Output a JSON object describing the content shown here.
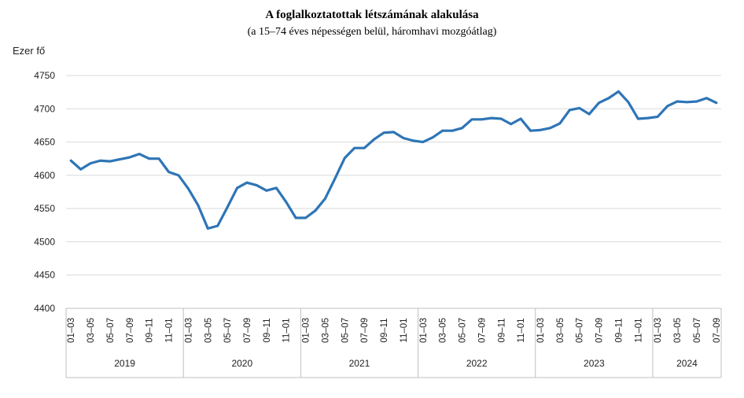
{
  "chart_data": {
    "type": "line",
    "title": "A foglalkoztatottak létszámának alakulása",
    "subtitle": "(a 15–74 éves népességen belül, háromhavi mozgóátlag)",
    "ylabel": "Ezer fő",
    "ylim": [
      4400,
      4750
    ],
    "yticks": [
      4400,
      4450,
      4500,
      4550,
      4600,
      4650,
      4700,
      4750
    ],
    "grid": true,
    "legend": "none",
    "color": "#2e75b6",
    "x_tick_labels": [
      "01–03",
      "03–05",
      "05–07",
      "07–09",
      "09–11",
      "11–01"
    ],
    "years": [
      {
        "label": "2019",
        "tick_count": 6
      },
      {
        "label": "2020",
        "tick_count": 6
      },
      {
        "label": "2021",
        "tick_count": 6
      },
      {
        "label": "2022",
        "tick_count": 6
      },
      {
        "label": "2023",
        "tick_count": 6
      },
      {
        "label": "2024",
        "tick_count": 4
      }
    ],
    "x": [
      "2019 01–03",
      "2019 02–04",
      "2019 03–05",
      "2019 04–06",
      "2019 05–07",
      "2019 06–08",
      "2019 07–09",
      "2019 08–10",
      "2019 09–11",
      "2019 10–12",
      "2019 11–01",
      "2019 12–02",
      "2020 01–03",
      "2020 02–04",
      "2020 03–05",
      "2020 04–06",
      "2020 05–07",
      "2020 06–08",
      "2020 07–09",
      "2020 08–10",
      "2020 09–11",
      "2020 10–12",
      "2020 11–01",
      "2020 12–02",
      "2021 01–03",
      "2021 02–04",
      "2021 03–05",
      "2021 04–06",
      "2021 05–07",
      "2021 06–08",
      "2021 07–09",
      "2021 08–10",
      "2021 09–11",
      "2021 10–12",
      "2021 11–01",
      "2021 12–02",
      "2022 01–03",
      "2022 02–04",
      "2022 03–05",
      "2022 04–06",
      "2022 05–07",
      "2022 06–08",
      "2022 07–09",
      "2022 08–10",
      "2022 09–11",
      "2022 10–12",
      "2022 11–01",
      "2022 12–02",
      "2023 01–03",
      "2023 02–04",
      "2023 03–05",
      "2023 04–06",
      "2023 05–07",
      "2023 06–08",
      "2023 07–09",
      "2023 08–10",
      "2023 09–11",
      "2023 10–12",
      "2023 11–01",
      "2023 12–02",
      "2024 01–03",
      "2024 02–04",
      "2024 03–05",
      "2024 04–06",
      "2024 05–07",
      "2024 06–08",
      "2024 07–09"
    ],
    "values": [
      4622,
      4609,
      4618,
      4622,
      4621,
      4624,
      4627,
      4632,
      4625,
      4625,
      4605,
      4600,
      4580,
      4555,
      4520,
      4524,
      4552,
      4581,
      4589,
      4585,
      4577,
      4581,
      4560,
      4536,
      4536,
      4547,
      4565,
      4595,
      4626,
      4641,
      4641,
      4654,
      4664,
      4665,
      4656,
      4652,
      4650,
      4657,
      4667,
      4667,
      4671,
      4684,
      4684,
      4686,
      4685,
      4677,
      4685,
      4667,
      4668,
      4671,
      4678,
      4698,
      4701,
      4692,
      4709,
      4716,
      4726,
      4710,
      4685,
      4686,
      4688,
      4704,
      4711,
      4710,
      4711,
      4716,
      4709
    ]
  }
}
